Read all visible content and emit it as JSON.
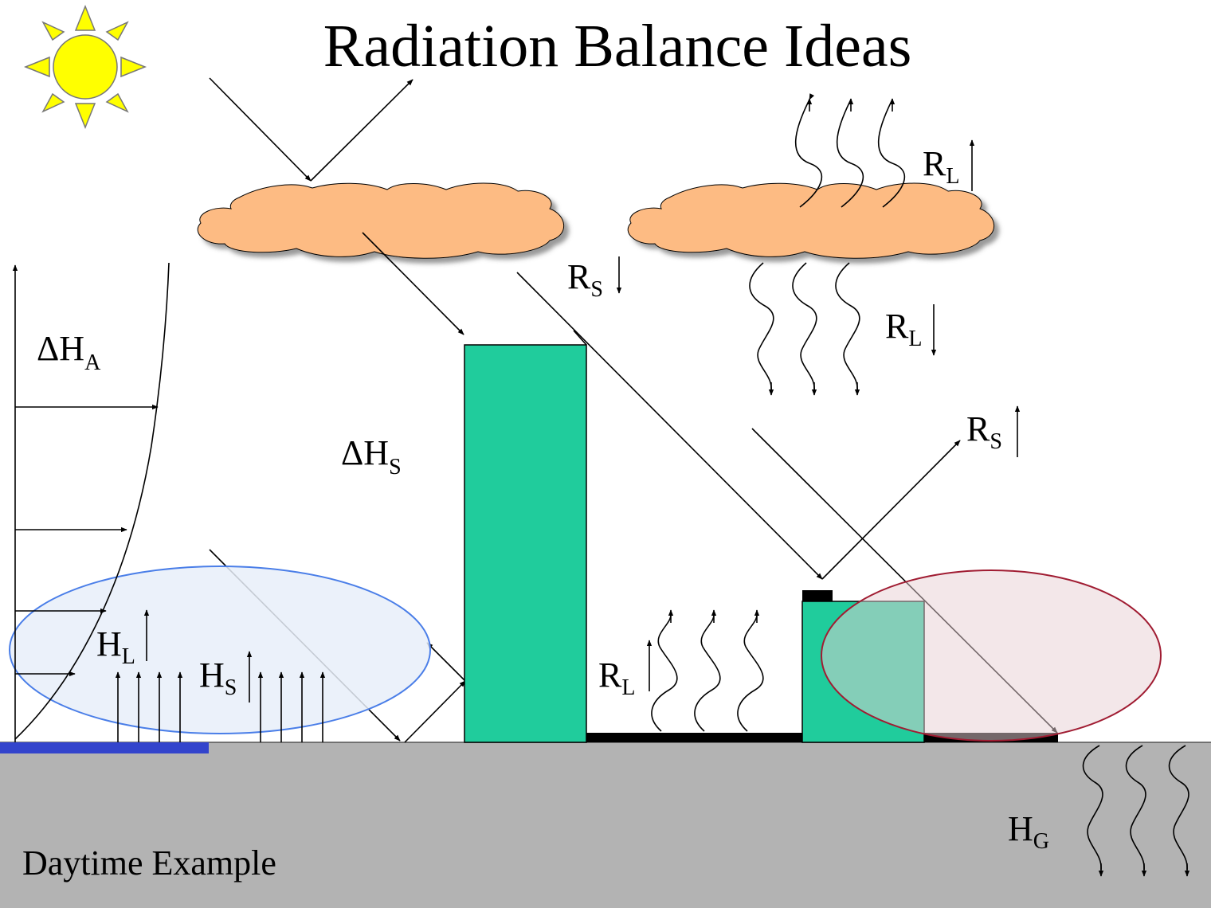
{
  "title": "Radiation Balance Ideas",
  "caption": "Daytime Example",
  "symbols": {
    "delta": "Δ",
    "H": "H",
    "R": "R"
  },
  "labels": {
    "delta_ha_sub": "A",
    "delta_hs_sub": "S",
    "rl_sub": "L",
    "rs_sub": "S",
    "hl_sub": "L",
    "hs_sub": "S",
    "hg_sub": "G"
  },
  "colors": {
    "sun": "#ffff00",
    "cloud": "#fdbb83",
    "building": "#20cc9c",
    "ground": "#b3b3b3",
    "water_strip": "#3344cc",
    "blue_ellipse_fill": "#e8eef9",
    "blue_ellipse_stroke": "#4a7ee8",
    "red_ellipse_fill": "#f2e3e5",
    "red_ellipse_stroke": "#a01c32"
  }
}
